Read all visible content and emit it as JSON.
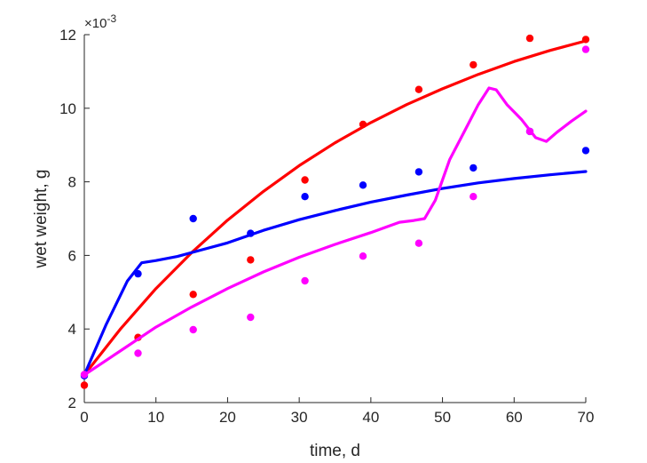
{
  "chart_data": {
    "type": "scatter",
    "xlabel": "time, d",
    "ylabel": "wet weight, g",
    "y_multiplier_label": "×10",
    "y_multiplier_exponent": "-3",
    "xlim": [
      0,
      70
    ],
    "ylim": [
      2,
      12
    ],
    "xticks": [
      "0",
      "10",
      "20",
      "30",
      "40",
      "50",
      "60",
      "70"
    ],
    "yticks": [
      "2",
      "4",
      "6",
      "8",
      "10",
      "12"
    ],
    "grid": false,
    "series": [
      {
        "color": "#ff0000",
        "points": [
          [
            0,
            2.47
          ],
          [
            7.5,
            3.77
          ],
          [
            15.2,
            4.94
          ],
          [
            23.2,
            5.88
          ],
          [
            30.8,
            8.05
          ],
          [
            38.9,
            9.56
          ],
          [
            46.7,
            10.51
          ],
          [
            54.3,
            11.18
          ],
          [
            62.2,
            11.9
          ],
          [
            70,
            11.87
          ]
        ],
        "line": [
          [
            0,
            2.75
          ],
          [
            5,
            3.99
          ],
          [
            10,
            5.1
          ],
          [
            15,
            6.08
          ],
          [
            20,
            6.96
          ],
          [
            25,
            7.74
          ],
          [
            30,
            8.44
          ],
          [
            35,
            9.06
          ],
          [
            40,
            9.61
          ],
          [
            45,
            10.1
          ],
          [
            50,
            10.53
          ],
          [
            55,
            10.92
          ],
          [
            60,
            11.27
          ],
          [
            65,
            11.57
          ],
          [
            70,
            11.83
          ]
        ]
      },
      {
        "color": "#0000ff",
        "points": [
          [
            0,
            2.73
          ],
          [
            7.5,
            5.5
          ],
          [
            15.2,
            7.0
          ],
          [
            23.2,
            6.6
          ],
          [
            30.8,
            7.6
          ],
          [
            38.9,
            7.91
          ],
          [
            46.7,
            8.27
          ],
          [
            54.3,
            8.38
          ],
          [
            62.2,
            9.37
          ],
          [
            70,
            8.85
          ]
        ],
        "line": [
          [
            0,
            2.75
          ],
          [
            3,
            4.1
          ],
          [
            6,
            5.3
          ],
          [
            8,
            5.8
          ],
          [
            10,
            5.86
          ],
          [
            13,
            5.97
          ],
          [
            16,
            6.13
          ],
          [
            20,
            6.34
          ],
          [
            25,
            6.68
          ],
          [
            30,
            6.97
          ],
          [
            35,
            7.22
          ],
          [
            40,
            7.45
          ],
          [
            45,
            7.64
          ],
          [
            50,
            7.82
          ],
          [
            55,
            7.97
          ],
          [
            60,
            8.09
          ],
          [
            65,
            8.19
          ],
          [
            70,
            8.28
          ]
        ]
      },
      {
        "color": "#ff00ff",
        "points": [
          [
            0,
            2.76
          ],
          [
            7.5,
            3.34
          ],
          [
            15.2,
            3.98
          ],
          [
            23.2,
            4.32
          ],
          [
            30.8,
            5.31
          ],
          [
            38.9,
            5.98
          ],
          [
            46.7,
            6.33
          ],
          [
            54.3,
            7.6
          ],
          [
            62.2,
            9.37
          ],
          [
            70,
            11.6
          ]
        ],
        "line": [
          [
            0,
            2.75
          ],
          [
            5,
            3.4
          ],
          [
            10,
            4.05
          ],
          [
            15,
            4.6
          ],
          [
            20,
            5.1
          ],
          [
            25,
            5.55
          ],
          [
            30,
            5.95
          ],
          [
            35,
            6.3
          ],
          [
            40,
            6.62
          ],
          [
            44,
            6.9
          ],
          [
            46,
            6.95
          ],
          [
            47.5,
            7.0
          ],
          [
            49,
            7.5
          ],
          [
            51,
            8.6
          ],
          [
            53,
            9.35
          ],
          [
            55,
            10.1
          ],
          [
            56.5,
            10.55
          ],
          [
            57.5,
            10.5
          ],
          [
            59,
            10.1
          ],
          [
            61,
            9.7
          ],
          [
            63,
            9.2
          ],
          [
            64.5,
            9.1
          ],
          [
            66,
            9.35
          ],
          [
            68,
            9.65
          ],
          [
            70,
            9.92
          ]
        ]
      }
    ]
  }
}
